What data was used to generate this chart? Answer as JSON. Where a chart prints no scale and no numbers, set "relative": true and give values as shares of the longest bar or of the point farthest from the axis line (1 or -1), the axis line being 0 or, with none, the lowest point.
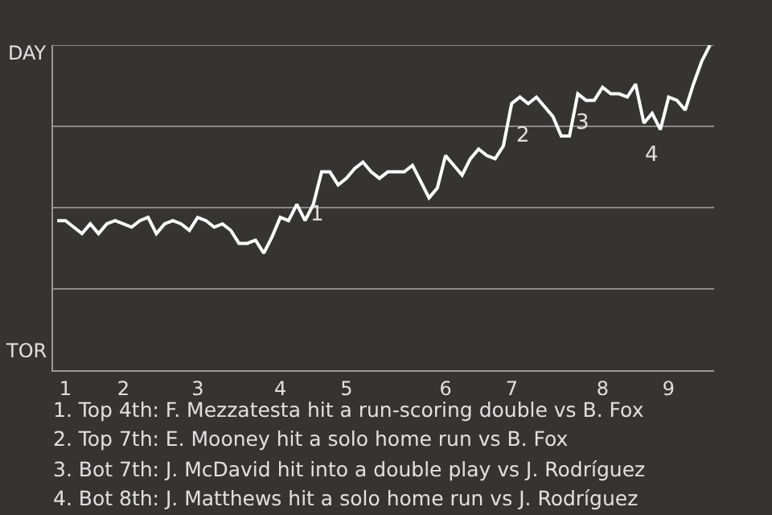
{
  "chart_data": {
    "type": "line",
    "relative": true,
    "categories": [
      null,
      "1",
      null,
      null,
      null,
      null,
      null,
      null,
      "2",
      null,
      null,
      null,
      null,
      null,
      null,
      null,
      null,
      "3",
      null,
      null,
      null,
      null,
      null,
      null,
      null,
      null,
      null,
      "4",
      null,
      null,
      null,
      null,
      null,
      null,
      null,
      "5",
      null,
      null,
      null,
      null,
      null,
      null,
      null,
      null,
      null,
      null,
      null,
      "6",
      null,
      null,
      null,
      null,
      null,
      null,
      null,
      "7",
      null,
      null,
      null,
      null,
      null,
      null,
      null,
      null,
      null,
      null,
      "8",
      null,
      null,
      null,
      null,
      null,
      null,
      null,
      "9",
      null,
      null,
      null,
      null,
      null
    ],
    "series": [
      {
        "color": "#ffffff",
        "values": [
          0.46,
          0.46,
          0.44,
          0.42,
          0.45,
          0.42,
          0.45,
          0.46,
          0.45,
          0.44,
          0.46,
          0.47,
          0.42,
          0.45,
          0.46,
          0.45,
          0.43,
          0.47,
          0.46,
          0.44,
          0.45,
          0.43,
          0.39,
          0.39,
          0.4,
          0.36,
          0.41,
          0.47,
          0.46,
          0.51,
          0.46,
          0.51,
          0.61,
          0.61,
          0.57,
          0.59,
          0.62,
          0.64,
          0.61,
          0.59,
          0.61,
          0.61,
          0.61,
          0.63,
          0.58,
          0.53,
          0.56,
          0.66,
          0.63,
          0.6,
          0.65,
          0.68,
          0.66,
          0.65,
          0.69,
          0.82,
          0.84,
          0.82,
          0.84,
          0.81,
          0.78,
          0.72,
          0.72,
          0.85,
          0.83,
          0.83,
          0.87,
          0.85,
          0.85,
          0.84,
          0.88,
          0.76,
          0.79,
          0.74,
          0.84,
          0.83,
          0.8,
          0.88,
          0.95,
          1.0
        ]
      }
    ],
    "ref_lines": [
      {
        "axis": "y",
        "value": 0.25,
        "color": "#8a8a8a"
      },
      {
        "axis": "y",
        "value": 0.5,
        "color": "#8a8a8a"
      },
      {
        "axis": "y",
        "value": 0.75,
        "color": "#8a8a8a"
      },
      {
        "axis": "y",
        "value": 1,
        "color": "#8a8a8a"
      }
    ],
    "marker": "none",
    "line_style": "solid",
    "annotations": [
      "DAY",
      "TOR",
      "1",
      "2",
      "3",
      "4",
      "1. Top 4th: F. Mezzatesta hit a run-scoring double vs B. Fox",
      "2. Top 7th: E. Mooney hit a solo home run vs B. Fox",
      "3. Bot 7th: J. McDavid hit into a double play vs J. Rodríguez",
      "4. Bot 8th: J. Matthews hit a solo home run vs J. Rodríguez"
    ]
  }
}
